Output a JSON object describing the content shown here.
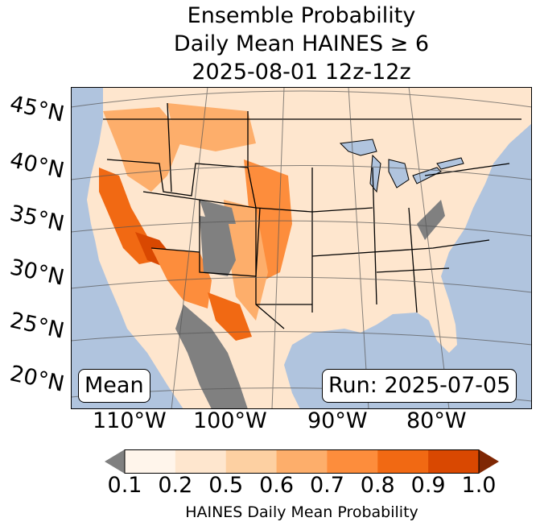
{
  "title": {
    "line1": "Ensemble Probability",
    "line2": "Daily Mean HAINES ≥ 6",
    "line3": "2025-08-01 12z-12z"
  },
  "map": {
    "lat_labels": [
      "45°N",
      "40°N",
      "35°N",
      "30°N",
      "25°N",
      "20°N"
    ],
    "lon_labels": [
      "110°W",
      "100°W",
      "90°W",
      "80°W"
    ],
    "left_box": "Mean",
    "right_box": "Run: 2025-07-05",
    "colors": {
      "ocean": "#b0c4de",
      "land_low": "#fee6ce",
      "no_data": "#808080",
      "lakes": "#b0c4de"
    }
  },
  "colorbar": {
    "label": "HAINES Daily Mean Probability",
    "ticks": [
      "0.1",
      "0.2",
      "0.5",
      "0.6",
      "0.7",
      "0.8",
      "0.9",
      "1.0"
    ],
    "colors": [
      "#fff5eb",
      "#fee6ce",
      "#fdd0a2",
      "#fdae6b",
      "#fd8d3c",
      "#f16913",
      "#d94801",
      "#a63603"
    ],
    "under_color": "#808080",
    "over_color": "#7f2704"
  }
}
